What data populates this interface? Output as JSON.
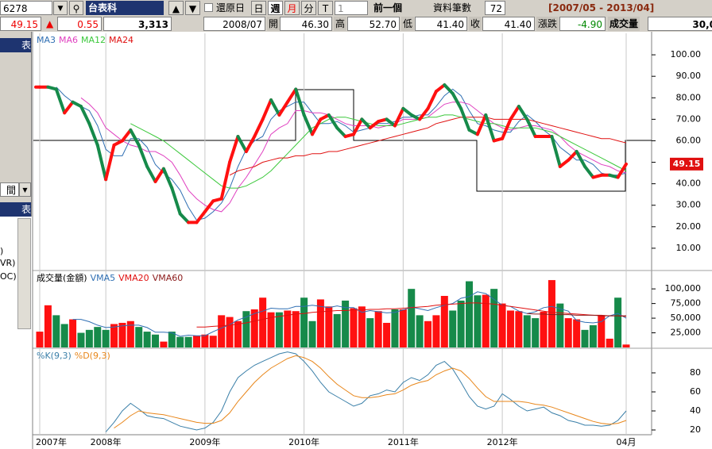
{
  "toolbar": {
    "code": "6278",
    "name": "台表科",
    "restore": "還原日",
    "periods": [
      "日",
      "週",
      "月",
      "分",
      "T"
    ],
    "count_select": "1",
    "prev": "前一個",
    "records_label": "資料筆數",
    "records": "72",
    "range": "[2007/05 - 2013/04]"
  },
  "quote": {
    "price": "49.15",
    "arrow": "▲",
    "change": "0.55",
    "volume": "3,313",
    "date": "2008/07",
    "open_label": "開",
    "open": "46.30",
    "high_label": "高",
    "high": "52.70",
    "low_label": "低",
    "low": "41.40",
    "close_label": "收",
    "close": "41.40",
    "diff_label": "漲跌",
    "diff": "-4.90",
    "vol_label": "成交量",
    "vol": "30,0"
  },
  "sidebar": [
    "表",
    "間",
    "表",
    ")",
    "VR)",
    "OC)"
  ],
  "chart_data": [
    {
      "type": "stock",
      "up_color": "#ff1010",
      "down_color": "#168a4a",
      "values": [
        85,
        85,
        84,
        73,
        78,
        76,
        68,
        58,
        42,
        58,
        60,
        65,
        58,
        48,
        41,
        47,
        38,
        26,
        22,
        22,
        27,
        32,
        33,
        50,
        62,
        55,
        62,
        70,
        79,
        72,
        78,
        84,
        72,
        63,
        70,
        72,
        66,
        62,
        63,
        70,
        66,
        69,
        70,
        67,
        75,
        72,
        70,
        75,
        83,
        86,
        82,
        75,
        65,
        63,
        72,
        60,
        61,
        70,
        76,
        70,
        62,
        62,
        62,
        48,
        51,
        55,
        48,
        43,
        44,
        44,
        43,
        49.15
      ],
      "series": [
        {
          "name": "MA3",
          "color": "#2f6fb3",
          "values": [
            null,
            null,
            85,
            81,
            78,
            76,
            74,
            67,
            56,
            53,
            53,
            61,
            61,
            57,
            49,
            45,
            42,
            37,
            29,
            23,
            24,
            27,
            31,
            38,
            48,
            56,
            60,
            62,
            70,
            74,
            76,
            78,
            78,
            73,
            68,
            68,
            69,
            67,
            64,
            65,
            66,
            68,
            68,
            69,
            71,
            71,
            72,
            72,
            76,
            81,
            84,
            81,
            74,
            68,
            67,
            65,
            64,
            64,
            69,
            72,
            69,
            65,
            62,
            57,
            54,
            51,
            51,
            49,
            45,
            44,
            44,
            45
          ]
        },
        {
          "name": "MA6",
          "color": "#e040c0",
          "values": [
            null,
            null,
            null,
            null,
            null,
            80,
            77,
            73,
            66,
            63,
            60,
            58,
            57,
            55,
            55,
            53,
            50,
            44,
            37,
            33,
            30,
            28,
            27,
            31,
            38,
            43,
            49,
            55,
            63,
            66,
            68,
            74,
            74,
            73,
            73,
            72,
            70,
            68,
            67,
            67,
            67,
            66,
            67,
            68,
            70,
            70,
            70,
            71,
            74,
            77,
            78,
            78,
            77,
            74,
            71,
            68,
            66,
            65,
            66,
            67,
            67,
            66,
            65,
            62,
            58,
            55,
            53,
            51,
            49,
            48,
            46,
            45
          ]
        },
        {
          "name": "MA12",
          "color": "#3cc83c",
          "values": [
            null,
            null,
            null,
            null,
            null,
            null,
            null,
            null,
            null,
            null,
            null,
            68,
            66,
            64,
            62,
            60,
            57,
            54,
            51,
            48,
            45,
            42,
            39,
            38,
            38,
            39,
            41,
            43,
            46,
            50,
            54,
            58,
            62,
            66,
            68,
            70,
            71,
            71,
            70,
            69,
            68,
            67,
            67,
            67,
            68,
            69,
            70,
            71,
            71,
            72,
            72,
            71,
            70,
            69,
            68,
            68,
            67,
            66,
            66,
            66,
            66,
            65,
            64,
            62,
            60,
            58,
            56,
            54,
            52,
            50,
            48,
            46
          ]
        },
        {
          "name": "MA24",
          "color": "#e01010",
          "values": [
            null,
            null,
            null,
            null,
            null,
            null,
            null,
            null,
            null,
            null,
            null,
            null,
            null,
            null,
            null,
            null,
            null,
            null,
            null,
            null,
            null,
            null,
            null,
            44,
            46,
            47,
            48,
            50,
            51,
            52,
            52,
            53,
            53,
            54,
            54,
            55,
            55,
            56,
            57,
            58,
            59,
            60,
            61,
            62,
            63,
            64,
            65,
            66,
            68,
            69,
            70,
            71,
            71,
            71,
            71,
            70,
            70,
            70,
            70,
            70,
            69,
            68,
            67,
            66,
            65,
            64,
            63,
            62,
            61,
            61,
            60,
            59
          ]
        }
      ],
      "ylim": [
        0,
        110
      ],
      "yticks": [
        {
          "value": 10,
          "label": "10.00"
        },
        {
          "value": 20,
          "label": "20.00"
        },
        {
          "value": 30,
          "label": "30.00"
        },
        {
          "value": 40,
          "label": "40.00"
        },
        {
          "value": 50,
          "label": "50.00"
        },
        {
          "value": 60,
          "label": "60.00"
        },
        {
          "value": 70,
          "label": "70.00"
        },
        {
          "value": 80,
          "label": "80.00"
        },
        {
          "value": 90,
          "label": "90.00"
        },
        {
          "value": 100,
          "label": "100.00"
        }
      ]
    },
    {
      "type": "bar",
      "title": "成交量(金額)",
      "values": [
        27000,
        72000,
        55000,
        40000,
        48000,
        25000,
        30000,
        35000,
        30000,
        40000,
        42000,
        45000,
        35000,
        27000,
        22000,
        10000,
        27000,
        18000,
        18000,
        20000,
        22000,
        20000,
        55000,
        52000,
        45000,
        62000,
        65000,
        85000,
        60000,
        60000,
        63000,
        62000,
        85000,
        45000,
        82000,
        70000,
        57000,
        80000,
        67000,
        70000,
        50000,
        62000,
        42000,
        65000,
        65000,
        100000,
        55000,
        45000,
        55000,
        88000,
        63000,
        80000,
        113000,
        89000,
        90000,
        100000,
        75000,
        63000,
        62000,
        55000,
        50000,
        61000,
        115000,
        75000,
        50000,
        48000,
        30000,
        38000,
        55000,
        15000,
        85000,
        5000
      ],
      "series": [
        {
          "name": "VMA5",
          "color": "#2f6fb3",
          "values": [
            null,
            null,
            null,
            null,
            48000,
            48000,
            44000,
            38000,
            34000,
            35000,
            37000,
            38000,
            38000,
            34000,
            26000,
            26000,
            25000,
            19000,
            21000,
            20000,
            20000,
            27000,
            33000,
            39000,
            47000,
            52000,
            58000,
            62000,
            67000,
            66000,
            66000,
            70000,
            70000,
            72000,
            70000,
            68000,
            71000,
            68000,
            68000,
            60000,
            63000,
            61000,
            59000,
            60000,
            64000,
            69000,
            66000,
            63000,
            68000,
            72000,
            75000,
            84000,
            87000,
            95000,
            92000,
            82000,
            72000,
            70000,
            62000,
            58000,
            61000,
            68000,
            70000,
            66000,
            62000,
            46000,
            43000,
            42000,
            44000,
            54000,
            58000,
            50000
          ]
        },
        {
          "name": "VMA20",
          "color": "#e01010",
          "values": [
            null,
            null,
            null,
            null,
            null,
            null,
            null,
            null,
            null,
            null,
            null,
            null,
            null,
            null,
            null,
            null,
            null,
            null,
            null,
            35000,
            35000,
            36000,
            37000,
            38000,
            40000,
            42000,
            45000,
            48000,
            51000,
            53000,
            55000,
            57000,
            58000,
            60000,
            61000,
            62000,
            63000,
            63000,
            64000,
            64000,
            65000,
            65000,
            66000,
            66000,
            67000,
            68000,
            69000,
            70000,
            72000,
            73000,
            74000,
            75000,
            76000,
            76000,
            75000,
            74000,
            72000,
            70000,
            68000,
            66000,
            64000,
            62000,
            60000,
            59000,
            58000,
            57000,
            56000,
            55000,
            55000,
            54000,
            54000,
            53000
          ]
        },
        {
          "name": "VMA60",
          "color": "#8b1a1a",
          "values": [
            null,
            null,
            null,
            null,
            null,
            null,
            null,
            null,
            null,
            null,
            null,
            null,
            null,
            null,
            null,
            null,
            null,
            null,
            null,
            null,
            null,
            null,
            null,
            null,
            null,
            null,
            null,
            null,
            null,
            null,
            null,
            null,
            null,
            null,
            null,
            null,
            null,
            null,
            null,
            null,
            null,
            null,
            null,
            null,
            null,
            null,
            null,
            null,
            null,
            null,
            null,
            null,
            null,
            null,
            null,
            null,
            null,
            null,
            null,
            58000,
            57000,
            57000,
            56000,
            56000,
            56000,
            55000,
            55000,
            55000,
            54000,
            54000,
            54000,
            54000
          ]
        }
      ],
      "ylim": [
        0,
        130000
      ],
      "yticks": [
        {
          "value": 25000,
          "label": "25,000"
        },
        {
          "value": 50000,
          "label": "50,000"
        },
        {
          "value": 75000,
          "label": "75,000"
        },
        {
          "value": 100000,
          "label": "100,000"
        }
      ]
    },
    {
      "type": "line",
      "categories": [
        "2007年",
        null,
        null,
        null,
        null,
        null,
        null,
        null,
        "2008年",
        null,
        null,
        null,
        null,
        null,
        null,
        null,
        null,
        null,
        null,
        null,
        "2009年",
        null,
        null,
        null,
        null,
        null,
        null,
        null,
        null,
        null,
        null,
        null,
        "2010年",
        null,
        null,
        null,
        null,
        null,
        null,
        null,
        null,
        null,
        null,
        null,
        "2011年",
        null,
        null,
        null,
        null,
        null,
        null,
        null,
        null,
        null,
        null,
        null,
        "2012年",
        null,
        null,
        null,
        null,
        null,
        null,
        null,
        null,
        null,
        null,
        null,
        null,
        null,
        null,
        "04月"
      ],
      "series": [
        {
          "name": "%K(9,3)",
          "color": "#3a7fa8",
          "values": [
            null,
            null,
            null,
            null,
            null,
            null,
            null,
            null,
            18,
            28,
            40,
            48,
            42,
            35,
            33,
            32,
            28,
            24,
            22,
            20,
            22,
            28,
            40,
            60,
            75,
            82,
            88,
            92,
            96,
            100,
            102,
            100,
            92,
            82,
            70,
            60,
            55,
            50,
            45,
            48,
            56,
            58,
            62,
            60,
            70,
            75,
            72,
            78,
            88,
            92,
            84,
            70,
            55,
            45,
            42,
            45,
            58,
            52,
            45,
            40,
            42,
            44,
            38,
            35,
            30,
            28,
            25,
            25,
            24,
            25,
            30,
            40
          ]
        },
        {
          "name": "%D(9,3)",
          "color": "#e8861a",
          "values": [
            null,
            null,
            null,
            null,
            null,
            null,
            null,
            null,
            null,
            22,
            28,
            35,
            40,
            38,
            37,
            36,
            34,
            32,
            30,
            28,
            27,
            27,
            30,
            38,
            50,
            60,
            70,
            78,
            85,
            90,
            95,
            98,
            96,
            92,
            85,
            76,
            68,
            62,
            56,
            54,
            54,
            55,
            57,
            58,
            62,
            67,
            70,
            72,
            78,
            82,
            85,
            82,
            74,
            64,
            55,
            50,
            50,
            50,
            50,
            49,
            47,
            46,
            44,
            41,
            38,
            35,
            32,
            29,
            27,
            26,
            27,
            30
          ]
        }
      ],
      "ylim": [
        15,
        105
      ],
      "yticks": [
        20,
        40,
        60,
        80
      ]
    }
  ]
}
